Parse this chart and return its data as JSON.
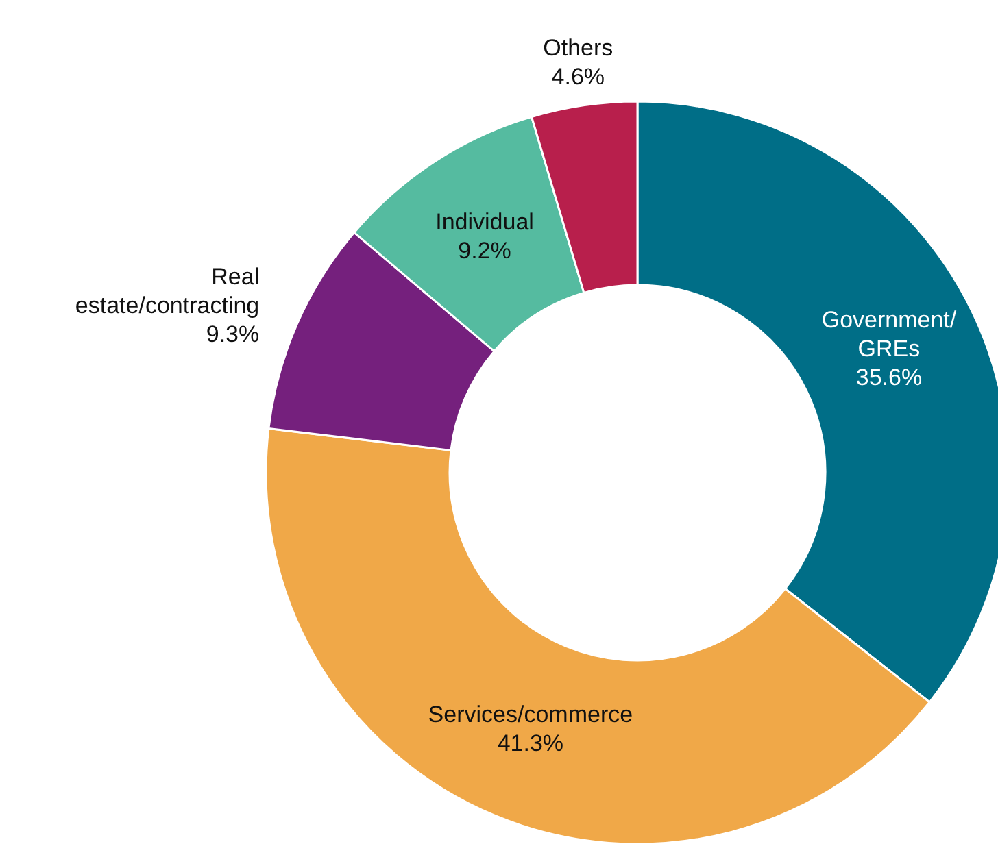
{
  "chart_data": {
    "type": "donut",
    "categories": [
      "Government/\nGREs",
      "Services/commerce",
      "Real\nestate/contracting",
      "Individual",
      "Others"
    ],
    "values": [
      35.6,
      41.3,
      9.3,
      9.2,
      4.6
    ],
    "colors": [
      "#006e87",
      "#f0a848",
      "#75207d",
      "#55bba0",
      "#b81f4c"
    ],
    "value_labels": [
      "35.6%",
      "41.3%",
      "9.3%",
      "9.2%",
      "4.6%"
    ]
  }
}
